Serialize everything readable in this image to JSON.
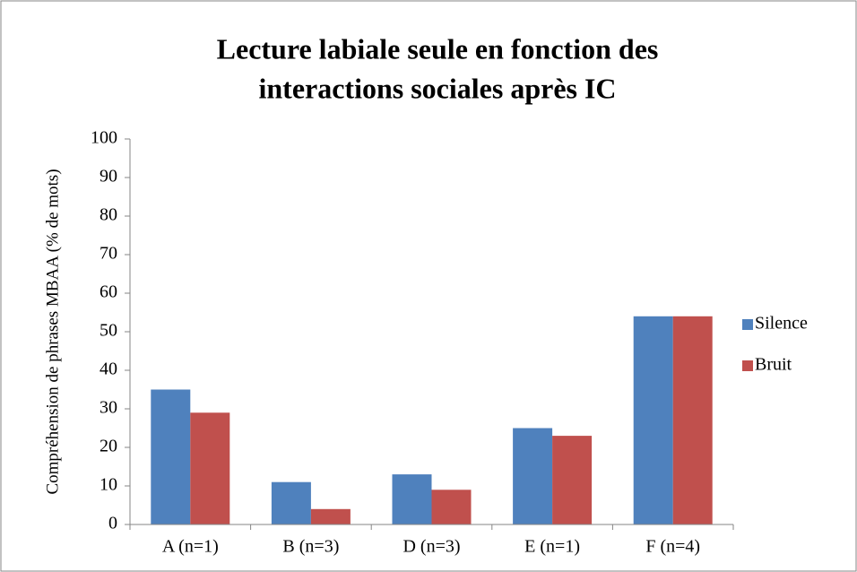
{
  "chart_data": {
    "type": "bar",
    "title": [
      "Lecture labiale seule en fonction des",
      "interactions sociales après IC"
    ],
    "y_label": "Compréhension de phrases MBAA (% de mots)",
    "categories": [
      "A (n=1)",
      "B (n=3)",
      "D (n=3)",
      "E (n=1)",
      "F (n=4)"
    ],
    "series": [
      {
        "name": "Silence",
        "color": "#4f81bd",
        "values": [
          35,
          11,
          13,
          25,
          54
        ]
      },
      {
        "name": "Bruit",
        "color": "#c0504d",
        "values": [
          29,
          4,
          9,
          23,
          54
        ]
      }
    ],
    "ylim": [
      0,
      100
    ],
    "yticks": [
      0,
      10,
      20,
      30,
      40,
      50,
      60,
      70,
      80,
      90,
      100
    ],
    "grid": false,
    "legend": "right"
  }
}
